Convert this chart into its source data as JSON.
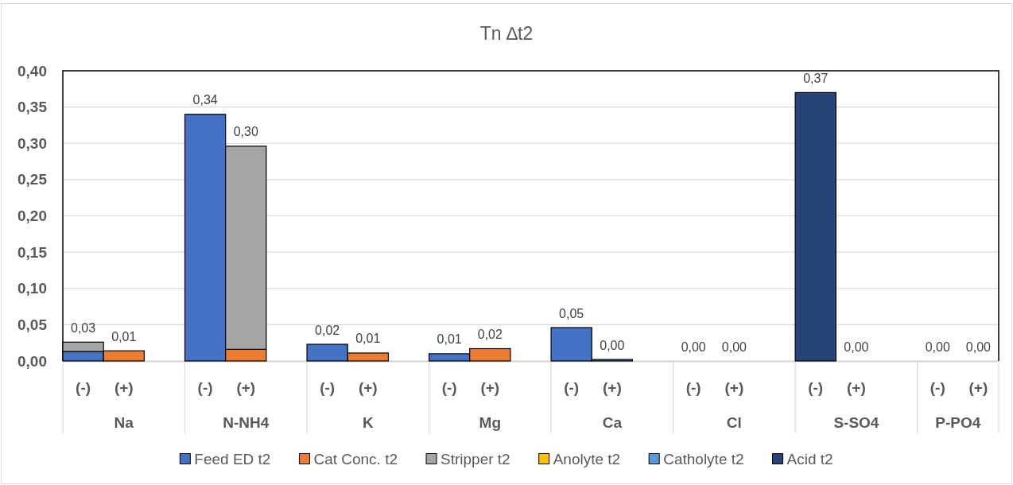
{
  "chart_data": {
    "type": "bar",
    "title": "Tn ∆t2",
    "stacked": true,
    "categories": [
      "(-)",
      "(+)",
      null,
      "(-)",
      "(+)",
      null,
      "(-)",
      "(+)",
      null,
      "(-)",
      "(+)",
      null,
      "(-)",
      "(+)",
      null,
      "(-)",
      "(+)",
      null,
      "(-)",
      "(+)",
      null,
      "(-)",
      "(+)"
    ],
    "annotations": [
      "Na",
      "N-NH4",
      "K",
      "Mg",
      "Ca",
      "Cl",
      "S-SO4",
      "P-PO4"
    ],
    "series": [
      {
        "name": "Feed ED t2",
        "color": "#4472c4",
        "values": [
          0.013,
          0,
          null,
          0.34,
          0,
          null,
          0.023,
          0,
          null,
          0.01,
          0,
          null,
          0.046,
          0.002,
          null,
          0,
          0,
          null,
          0,
          0,
          null,
          0,
          0
        ]
      },
      {
        "name": "Cat Conc. t2",
        "color": "#ed7d31",
        "values": [
          0,
          0.014,
          null,
          0,
          0.016,
          null,
          0,
          0.011,
          null,
          0,
          0.017,
          null,
          0,
          0,
          null,
          0,
          0,
          null,
          0,
          0,
          null,
          0,
          0
        ]
      },
      {
        "name": "Stripper t2",
        "color": "#a5a5a5",
        "values": [
          0.013,
          0,
          null,
          0,
          0.28,
          null,
          0,
          0,
          null,
          0,
          0,
          null,
          0,
          0,
          null,
          0,
          0,
          null,
          0,
          0,
          null,
          0,
          0
        ]
      },
      {
        "name": "Anolyte t2",
        "color": "#ffc000",
        "values": [
          0,
          0,
          null,
          0,
          0,
          null,
          0,
          0,
          null,
          0,
          0,
          null,
          0,
          0,
          null,
          0,
          0,
          null,
          0,
          0,
          null,
          0,
          0
        ]
      },
      {
        "name": "Catholyte t2",
        "color": "#5b9bd5",
        "values": [
          0,
          0,
          null,
          0,
          0,
          null,
          0,
          0,
          null,
          0,
          0,
          null,
          0,
          0,
          null,
          0,
          0,
          null,
          0,
          0,
          null,
          0,
          0
        ]
      },
      {
        "name": "Acid t2",
        "color": "#264478",
        "values": [
          0,
          0,
          null,
          0,
          0,
          null,
          0,
          0,
          null,
          0,
          0,
          null,
          0,
          0,
          null,
          0,
          0,
          null,
          0.37,
          0,
          null,
          0,
          0
        ]
      }
    ],
    "totals": [
      "0,03",
      "0,01",
      null,
      "0,34",
      "0,30",
      null,
      "0,02",
      "0,01",
      null,
      "0,01",
      "0,02",
      null,
      "0,05",
      "0,00",
      null,
      "0,00",
      "0,00",
      null,
      "0,37",
      "0,00",
      null,
      "0,00",
      "0,00"
    ],
    "ylim": [
      0,
      0.4
    ],
    "yticks": [
      {
        "value": 0,
        "label": "0,00"
      },
      {
        "value": 0.05,
        "label": "0,05"
      },
      {
        "value": 0.1,
        "label": "0,10"
      },
      {
        "value": 0.15,
        "label": "0,15"
      },
      {
        "value": 0.2,
        "label": "0,20"
      },
      {
        "value": 0.25,
        "label": "0,25"
      },
      {
        "value": 0.3,
        "label": "0,30"
      },
      {
        "value": 0.35,
        "label": "0,35"
      },
      {
        "value": 0.4,
        "label": "0,40"
      }
    ],
    "grid": "y",
    "legend": "bottom"
  }
}
